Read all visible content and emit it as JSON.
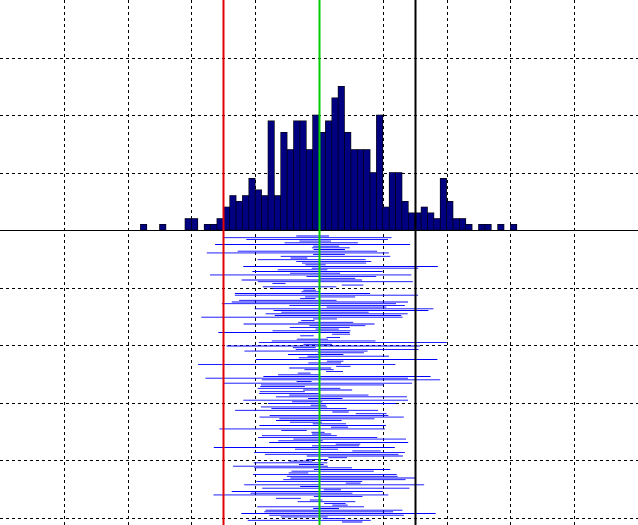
{
  "chart_data": {
    "type": "histogram",
    "title": "",
    "xlabel": "",
    "ylabel": "",
    "grid": true,
    "grid_style": "dashed",
    "xlim": [
      0,
      100
    ],
    "histogram": {
      "bin_width": 1,
      "ylim": [
        0,
        40
      ],
      "bins": [
        {
          "x": 22,
          "count": 1
        },
        {
          "x": 25,
          "count": 1
        },
        {
          "x": 29,
          "count": 2
        },
        {
          "x": 30,
          "count": 2
        },
        {
          "x": 32,
          "count": 1
        },
        {
          "x": 33,
          "count": 1
        },
        {
          "x": 34,
          "count": 2
        },
        {
          "x": 35,
          "count": 4
        },
        {
          "x": 36,
          "count": 6
        },
        {
          "x": 37,
          "count": 5
        },
        {
          "x": 38,
          "count": 6
        },
        {
          "x": 39,
          "count": 9
        },
        {
          "x": 40,
          "count": 7
        },
        {
          "x": 41,
          "count": 6
        },
        {
          "x": 42,
          "count": 19
        },
        {
          "x": 43,
          "count": 6
        },
        {
          "x": 44,
          "count": 17
        },
        {
          "x": 45,
          "count": 14
        },
        {
          "x": 46,
          "count": 19
        },
        {
          "x": 47,
          "count": 19
        },
        {
          "x": 48,
          "count": 14
        },
        {
          "x": 49,
          "count": 20
        },
        {
          "x": 50,
          "count": 17
        },
        {
          "x": 51,
          "count": 19
        },
        {
          "x": 52,
          "count": 23
        },
        {
          "x": 53,
          "count": 25
        },
        {
          "x": 54,
          "count": 17
        },
        {
          "x": 55,
          "count": 14
        },
        {
          "x": 56,
          "count": 14
        },
        {
          "x": 57,
          "count": 14
        },
        {
          "x": 58,
          "count": 10
        },
        {
          "x": 59,
          "count": 20
        },
        {
          "x": 60,
          "count": 4
        },
        {
          "x": 61,
          "count": 10
        },
        {
          "x": 62,
          "count": 10
        },
        {
          "x": 63,
          "count": 5
        },
        {
          "x": 64,
          "count": 3
        },
        {
          "x": 65,
          "count": 3
        },
        {
          "x": 66,
          "count": 4
        },
        {
          "x": 67,
          "count": 3
        },
        {
          "x": 68,
          "count": 2
        },
        {
          "x": 69,
          "count": 9
        },
        {
          "x": 70,
          "count": 5
        },
        {
          "x": 71,
          "count": 2
        },
        {
          "x": 72,
          "count": 2
        },
        {
          "x": 73,
          "count": 1
        },
        {
          "x": 75,
          "count": 1
        },
        {
          "x": 76,
          "count": 1
        },
        {
          "x": 78,
          "count": 1
        },
        {
          "x": 80,
          "count": 1
        }
      ]
    },
    "intervals": {
      "count": 170,
      "note_seed": 7,
      "center_mean": 51,
      "center_spread": 6,
      "halfwidth_min": 1,
      "halfwidth_max": 16
    },
    "reference_lines": [
      {
        "x": 35,
        "color": "#e00000"
      },
      {
        "x": 50,
        "color": "#00cc00"
      },
      {
        "x": 65,
        "color": "#000000"
      }
    ],
    "colors": {
      "bar_fill": "#000080",
      "bar_stroke": "#000000",
      "interval": "#0000ff",
      "grid": "#000000",
      "baseline": "#000000",
      "background": "#ffffff"
    }
  }
}
